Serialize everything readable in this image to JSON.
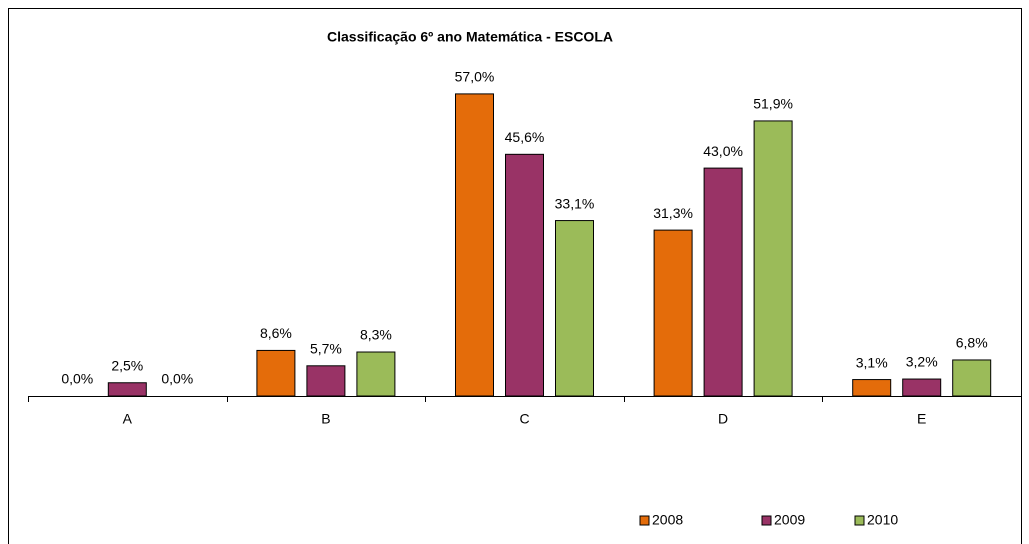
{
  "chart_data": {
    "type": "bar",
    "title": "Classificação 6º ano Matemática  - ESCOLA",
    "categories": [
      "A",
      "B",
      "C",
      "D",
      "E"
    ],
    "series": [
      {
        "name": "2008",
        "color": "#e46c0a",
        "values": [
          0,
          8.6,
          57,
          31.3,
          3.1
        ],
        "value_labels": [
          "0,0%",
          "8,6%",
          "57,0%",
          "31,3%",
          "3,1%"
        ]
      },
      {
        "name": "2009",
        "color": "#993366",
        "values": [
          2.5,
          5.7,
          45.6,
          43,
          3.2
        ],
        "value_labels": [
          "2,5%",
          "5,7%",
          "45,6%",
          "43,0%",
          "3,2%"
        ]
      },
      {
        "name": "2010",
        "color": "#9bbb59",
        "values": [
          0,
          8.3,
          33.1,
          51.9,
          6.8
        ],
        "value_labels": [
          "0,0%",
          "8,3%",
          "33,1%",
          "51,9%",
          "6,8%"
        ]
      }
    ],
    "ylim": [
      0,
      60
    ],
    "legend": "bottom-right"
  }
}
